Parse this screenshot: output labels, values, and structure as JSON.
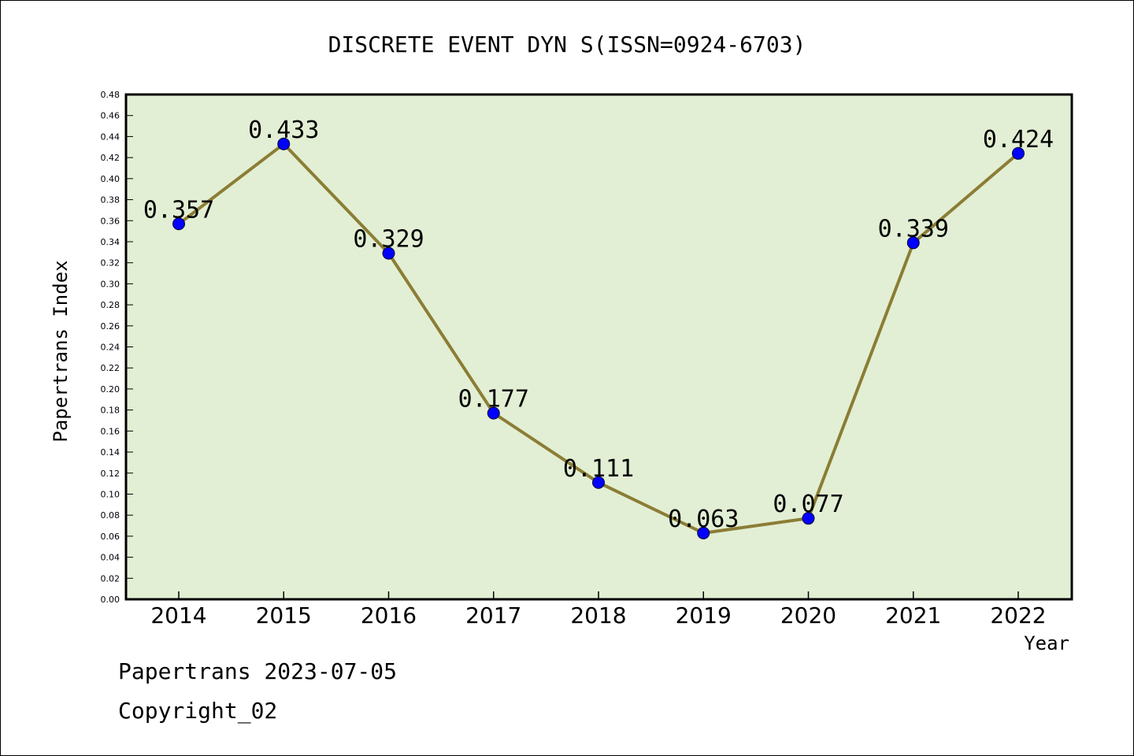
{
  "footer": {
    "line1": "Papertrans 2023-07-05",
    "line2": "Copyright_02"
  },
  "chart_data": {
    "type": "line",
    "title": "DISCRETE EVENT DYN S(ISSN=0924-6703)",
    "xlabel": "Year",
    "ylabel": "Papertrans Index",
    "categories": [
      "2014",
      "2015",
      "2016",
      "2017",
      "2018",
      "2019",
      "2020",
      "2021",
      "2022"
    ],
    "series": [
      {
        "values": [
          0.357,
          0.433,
          0.329,
          0.177,
          0.111,
          0.063,
          0.077,
          0.339,
          0.424
        ]
      }
    ],
    "data_labels": [
      "0.357",
      "0.433",
      "0.329",
      "0.177",
      "0.111",
      "0.063",
      "0.077",
      "0.339",
      "0.424"
    ],
    "ylim": [
      0,
      0.48
    ],
    "ytick_step": 0.02,
    "yticks": [
      "0.00",
      "0.02",
      "0.04",
      "0.06",
      "0.08",
      "0.10",
      "0.12",
      "0.14",
      "0.16",
      "0.18",
      "0.20",
      "0.22",
      "0.24",
      "0.26",
      "0.28",
      "0.30",
      "0.32",
      "0.34",
      "0.36",
      "0.38",
      "0.40",
      "0.42",
      "0.44",
      "0.46",
      "0.48"
    ],
    "grid": false,
    "legend": "none",
    "colors": {
      "plot_background": "#e2efd4",
      "line": "#8b7d35",
      "marker": "#0000ff",
      "axis": "#000000"
    }
  }
}
